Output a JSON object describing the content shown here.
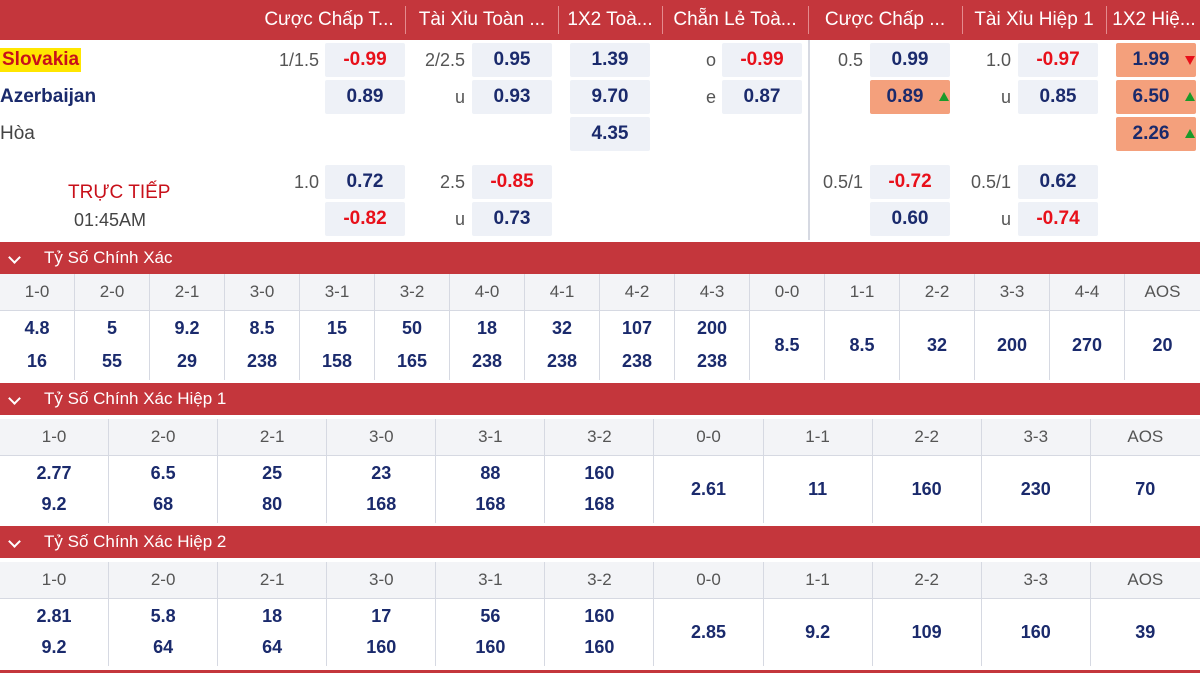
{
  "headers": [
    "Cược Chấp T...",
    "Tài Xỉu Toàn ...",
    "1X2 Toà...",
    "Chẵn Lẻ Toà...",
    "Cược Chấp ...",
    "Tài Xỉu Hiệp 1",
    "1X2 Hiệ..."
  ],
  "match": {
    "home": "Slovakia",
    "away": "Azerbaijan",
    "draw": "Hòa",
    "status": "TRỰC TIẾP",
    "time": "01:45AM"
  },
  "main_odds": {
    "hdp_line": "1/1.5",
    "hdp_home": "-0.99",
    "hdp_away": "0.89",
    "ou_line": "2/2.5",
    "ou_over": "0.95",
    "ou_under_label": "u",
    "ou_under": "0.93",
    "x12_home": "1.39",
    "x12_away": "9.70",
    "x12_draw": "4.35",
    "oe_odd_label": "o",
    "oe_odd": "-0.99",
    "oe_even_label": "e",
    "oe_even": "0.87",
    "h1_hdp_line": "0.5",
    "h1_hdp_home": "0.99",
    "h1_hdp_away": "0.89",
    "h1_ou_line": "1.0",
    "h1_ou_over": "-0.97",
    "h1_ou_under_label": "u",
    "h1_ou_under": "0.85",
    "h1_x12_home": "1.99",
    "h1_x12_away": "6.50",
    "h1_x12_draw": "2.26"
  },
  "alt_odds": {
    "hdp_line": "1.0",
    "hdp_home": "0.72",
    "hdp_away": "-0.82",
    "ou_line": "2.5",
    "ou_over": "-0.85",
    "ou_under_label": "u",
    "ou_under": "0.73",
    "h1_hdp_line": "0.5/1",
    "h1_hdp_home": "-0.72",
    "h1_hdp_away": "0.60",
    "h1_ou_line": "0.5/1",
    "h1_ou_over": "0.62",
    "h1_ou_under_label": "u",
    "h1_ou_under": "-0.74"
  },
  "sections": [
    {
      "title": "Tỷ Số Chính Xác",
      "scores": [
        "1-0",
        "2-0",
        "2-1",
        "3-0",
        "3-1",
        "3-2",
        "4-0",
        "4-1",
        "4-2",
        "4-3",
        "0-0",
        "1-1",
        "2-2",
        "3-3",
        "4-4",
        "AOS"
      ],
      "top": [
        "4.8",
        "5",
        "9.2",
        "8.5",
        "15",
        "50",
        "18",
        "32",
        "107",
        "200",
        "8.5",
        "8.5",
        "32",
        "200",
        "270",
        "20"
      ],
      "bottom": [
        "16",
        "55",
        "29",
        "238",
        "158",
        "165",
        "238",
        "238",
        "238",
        "238",
        "",
        "",
        "",
        "",
        "",
        ""
      ]
    },
    {
      "title": "Tỷ Số Chính Xác Hiệp 1",
      "scores": [
        "1-0",
        "2-0",
        "2-1",
        "3-0",
        "3-1",
        "3-2",
        "0-0",
        "1-1",
        "2-2",
        "3-3",
        "AOS"
      ],
      "top": [
        "2.77",
        "6.5",
        "25",
        "23",
        "88",
        "160",
        "2.61",
        "11",
        "160",
        "230",
        "70"
      ],
      "bottom": [
        "9.2",
        "68",
        "80",
        "168",
        "168",
        "168",
        "",
        "",
        "",
        "",
        ""
      ]
    },
    {
      "title": "Tỷ Số Chính Xác Hiệp 2",
      "scores": [
        "1-0",
        "2-0",
        "2-1",
        "3-0",
        "3-1",
        "3-2",
        "0-0",
        "1-1",
        "2-2",
        "3-3",
        "AOS"
      ],
      "top": [
        "2.81",
        "5.8",
        "18",
        "17",
        "56",
        "160",
        "2.85",
        "9.2",
        "109",
        "160",
        "39"
      ],
      "bottom": [
        "9.2",
        "64",
        "64",
        "160",
        "160",
        "160",
        "",
        "",
        "",
        "",
        ""
      ]
    }
  ]
}
